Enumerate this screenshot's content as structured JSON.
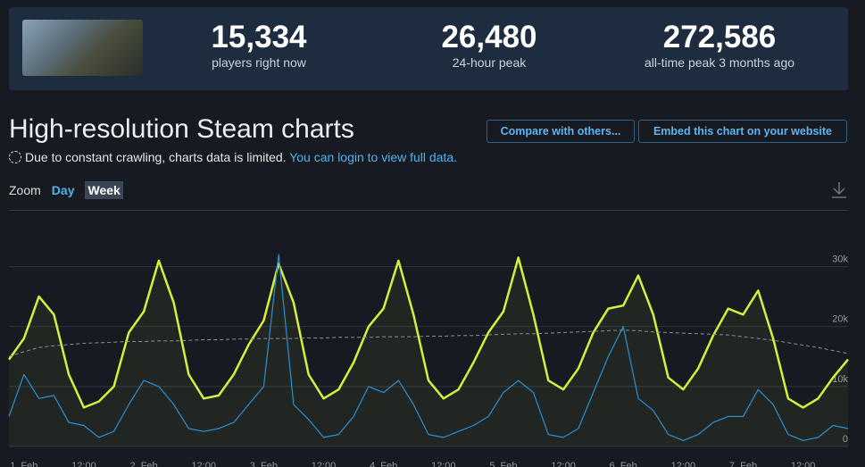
{
  "header": {
    "stats": [
      {
        "value": "15,334",
        "label": "players right now"
      },
      {
        "value": "26,480",
        "label": "24-hour peak"
      },
      {
        "value": "272,586",
        "label": "all-time peak 3 months ago"
      }
    ]
  },
  "title": "High-resolution Steam charts",
  "buttons": [
    "Compare with others...",
    "Embed this chart on your website"
  ],
  "notice": {
    "text": "Due to constant crawling, charts data is limited.",
    "link": "You can login to view full data."
  },
  "zoom": {
    "label": "Zoom",
    "options": [
      "Day",
      "Week"
    ]
  },
  "chart_data": {
    "type": "line",
    "categories": [
      null,
      "1. Feb",
      null,
      null,
      null,
      "12:00",
      null,
      null,
      null,
      "2. Feb",
      null,
      null,
      null,
      "12:00",
      null,
      null,
      null,
      "3. Feb",
      null,
      null,
      null,
      "12:00",
      null,
      null,
      null,
      "4. Feb",
      null,
      null,
      null,
      "12:00",
      null,
      null,
      null,
      "5. Feb",
      null,
      null,
      null,
      "12:00",
      null,
      null,
      null,
      "6. Feb",
      null,
      null,
      null,
      "12:00",
      null,
      null,
      null,
      "7. Feb",
      null,
      null,
      null,
      "12:00",
      null,
      null,
      null
    ],
    "series": [
      {
        "color": "#d4f03c",
        "style": "solid",
        "area": true,
        "values": [
          14500,
          18000,
          25000,
          22000,
          12000,
          6500,
          7500,
          10000,
          19000,
          22500,
          31000,
          24000,
          12000,
          8000,
          8500,
          12000,
          17000,
          21000,
          30500,
          24000,
          12000,
          8000,
          9500,
          14000,
          20000,
          23000,
          31000,
          22000,
          11000,
          8000,
          9500,
          14000,
          19000,
          22500,
          31500,
          22000,
          11000,
          9500,
          13000,
          19000,
          23000,
          23500,
          28500,
          22000,
          11500,
          9500,
          13000,
          18500,
          23000,
          22000,
          26000,
          18000,
          8000,
          6500,
          8000,
          11500,
          14500
        ]
      },
      {
        "color": "#2a8fd4",
        "style": "solid",
        "area": false,
        "values": [
          5000,
          12000,
          8000,
          8500,
          4000,
          3500,
          1500,
          2500,
          7000,
          11000,
          10000,
          7000,
          3000,
          2500,
          3000,
          4000,
          7000,
          10000,
          32000,
          7000,
          4500,
          1500,
          2000,
          5000,
          10000,
          9000,
          11000,
          7000,
          2000,
          1500,
          2500,
          3500,
          5000,
          9000,
          11000,
          9000,
          2000,
          1500,
          3000,
          9000,
          15000,
          20000,
          8000,
          6000,
          2000,
          1000,
          2000,
          4000,
          5000,
          5000,
          9500,
          7000,
          2000,
          1000,
          1500,
          3500,
          3000
        ]
      },
      {
        "color": "#8a8f98",
        "style": "dashed",
        "area": false,
        "values": [
          15000,
          15800,
          16500,
          16800,
          17000,
          17200,
          17300,
          17400,
          17500,
          17500,
          17600,
          17600,
          17700,
          17800,
          17800,
          17900,
          17900,
          18000,
          18000,
          18000,
          18100,
          18100,
          18200,
          18200,
          18200,
          18300,
          18300,
          18300,
          18400,
          18400,
          18500,
          18500,
          18600,
          18700,
          18800,
          18800,
          18900,
          19000,
          19100,
          19200,
          19300,
          19400,
          19300,
          19100,
          19000,
          18900,
          18800,
          18700,
          18600,
          18300,
          18000,
          17700,
          17300,
          16900,
          16500,
          16000,
          15500
        ]
      }
    ],
    "ylim": [
      0,
      35000
    ],
    "yticks": [
      0,
      {
        "value": 10000,
        "label": "10k"
      },
      {
        "value": 20000,
        "label": "20k"
      },
      {
        "value": 30000,
        "label": "30k"
      }
    ],
    "grid": true
  }
}
